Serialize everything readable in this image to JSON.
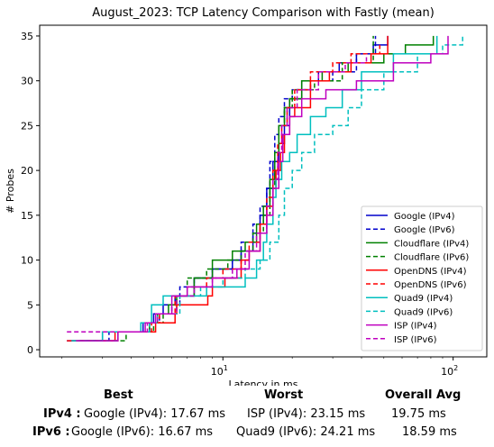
{
  "chart_data": {
    "type": "line",
    "title": "August_2023: TCP Latency Comparison with Fastly (mean)",
    "xlabel": "Latency in ms",
    "ylabel": "# Probes",
    "xscale": "log",
    "xlim": [
      1.6,
      140
    ],
    "ylim": [
      -0.8,
      36.2
    ],
    "xticks": [
      {
        "value": 10,
        "label": "10^1"
      },
      {
        "value": 100,
        "label": "10^2"
      }
    ],
    "yticks": [
      0,
      5,
      10,
      15,
      20,
      25,
      30,
      35
    ],
    "legend": "lower-right",
    "grid": false,
    "series": [
      {
        "name": "Google (IPv4)",
        "color": "#0000cc",
        "dash": false,
        "x": [
          2.1,
          3,
          4.5,
          5,
          5.5,
          6.2,
          7.5,
          9,
          11,
          12,
          13.5,
          14.5,
          15.5,
          16.5,
          17.5,
          18.5,
          19.5,
          22,
          26,
          32,
          38,
          45,
          52
        ],
        "y": [
          1,
          2,
          3,
          4,
          5,
          6,
          8,
          9,
          10,
          11,
          13,
          15,
          18,
          21,
          23,
          25,
          28,
          30,
          31,
          32,
          33,
          34,
          35
        ]
      },
      {
        "name": "Google (IPv6)",
        "color": "#0000cc",
        "dash": true,
        "x": [
          2.2,
          3.2,
          4.8,
          5.3,
          6,
          6.5,
          7.5,
          9,
          11,
          12,
          13.5,
          14.5,
          15.5,
          16,
          16.8,
          17.5,
          18.5,
          20,
          24,
          30,
          38,
          46
        ],
        "y": [
          1,
          2,
          3,
          4,
          5,
          7,
          8,
          9,
          10,
          12,
          14,
          16,
          18,
          21,
          24,
          26,
          28,
          29,
          30,
          31,
          33,
          35
        ]
      },
      {
        "name": "Cloudflare (IPv4)",
        "color": "#008000",
        "dash": false,
        "x": [
          2.4,
          3.5,
          4.8,
          5.2,
          5.8,
          6.3,
          7.5,
          9,
          11,
          12.5,
          14,
          15,
          16,
          16.8,
          17.5,
          18.5,
          19.5,
          22,
          27,
          35,
          50,
          62,
          82
        ],
        "y": [
          1,
          2,
          3,
          4,
          5,
          6,
          8,
          10,
          11,
          12,
          14,
          16,
          19,
          22,
          25,
          27,
          28,
          30,
          31,
          32,
          33,
          34,
          35
        ]
      },
      {
        "name": "Cloudflare (IPv6)",
        "color": "#008000",
        "dash": true,
        "x": [
          2.5,
          3.8,
          5,
          5.5,
          6.3,
          7,
          8.5,
          10.5,
          12,
          13.5,
          15,
          16,
          16.8,
          17.5,
          18.5,
          20,
          25,
          33,
          45
        ],
        "y": [
          1,
          2,
          3,
          4,
          6,
          8,
          9,
          10,
          11,
          13,
          15,
          18,
          22,
          25,
          27,
          29,
          30,
          32,
          35
        ]
      },
      {
        "name": "OpenDNS (IPv4)",
        "color": "#ff0000",
        "dash": false,
        "x": [
          2.1,
          3.4,
          4.9,
          5.1,
          6.2,
          6.3,
          8.6,
          9,
          10.2,
          12,
          13,
          14.5,
          15.5,
          16.5,
          17,
          17.8,
          18.5,
          19.5,
          20.5,
          24,
          29,
          36,
          44,
          52
        ],
        "y": [
          1,
          2,
          2,
          3,
          4,
          5,
          6,
          7,
          8,
          10,
          11,
          14,
          16,
          18,
          20,
          22,
          24,
          26,
          27,
          30,
          31,
          32,
          33,
          35
        ]
      },
      {
        "name": "OpenDNS (IPv6)",
        "color": "#ff0000",
        "dash": true,
        "x": [
          2.4,
          3.5,
          4.9,
          5.3,
          6.2,
          7,
          8.5,
          10,
          12,
          13,
          14.5,
          15.5,
          16.5,
          17.3,
          18,
          19,
          20.5,
          24,
          30,
          36,
          48
        ],
        "y": [
          1,
          2,
          3,
          4,
          6,
          7,
          8,
          9,
          10,
          12,
          14,
          17,
          20,
          23,
          25,
          27,
          29,
          31,
          32,
          33,
          34
        ]
      },
      {
        "name": "Quad9 (IPv4)",
        "color": "#00bfbf",
        "dash": false,
        "x": [
          2.2,
          3,
          4.4,
          4.9,
          5.5,
          6.5,
          8.5,
          11.5,
          12.5,
          14,
          15,
          15.5,
          16.5,
          17,
          18,
          19.5,
          21,
          24,
          28,
          33,
          40,
          55,
          85
        ],
        "y": [
          1,
          2,
          3,
          5,
          6,
          6,
          7,
          7,
          8,
          10,
          12,
          14,
          17,
          19,
          21,
          22,
          24,
          26,
          27,
          29,
          31,
          33,
          35
        ]
      },
      {
        "name": "Quad9 (IPv6)",
        "color": "#00bfbf",
        "dash": true,
        "x": [
          2.5,
          3.5,
          4.8,
          5.2,
          6.5,
          8,
          10,
          12.5,
          14.5,
          16,
          17.5,
          18.5,
          20,
          22,
          25,
          30,
          35,
          40,
          50,
          70,
          90,
          110
        ],
        "y": [
          1,
          2,
          3,
          4,
          6,
          7,
          8,
          9,
          10,
          12,
          15,
          18,
          20,
          22,
          24,
          25,
          27,
          29,
          31,
          33,
          34,
          35
        ]
      },
      {
        "name": "ISP (IPv4)",
        "color": "#bf00bf",
        "dash": false,
        "x": [
          2.3,
          3.5,
          4.6,
          5.1,
          6,
          7,
          9,
          11.5,
          13,
          14.5,
          15.5,
          16.5,
          17.5,
          18.2,
          19.5,
          22,
          28,
          38,
          55,
          80,
          95
        ],
        "y": [
          1,
          2,
          3,
          4,
          6,
          7,
          8,
          9,
          11,
          13,
          15,
          18,
          21,
          24,
          26,
          28,
          29,
          30,
          32,
          33,
          35
        ]
      },
      {
        "name": "ISP (IPv6)",
        "color": "#bf00bf",
        "dash": true,
        "x": [
          2.1,
          3.2,
          4.7,
          5.2,
          6.3,
          7.5,
          9,
          11,
          12.5,
          14,
          15.5,
          16.5,
          17.3,
          18,
          19,
          21,
          26,
          34,
          42
        ],
        "y": [
          2,
          2,
          3,
          4,
          6,
          7,
          8,
          9,
          11,
          13,
          16,
          19,
          22,
          25,
          27,
          29,
          31,
          32,
          33
        ]
      }
    ]
  },
  "summary": {
    "headers": {
      "best": "Best",
      "worst": "Worst",
      "avg": "Overall Avg"
    },
    "rows": [
      {
        "label": "IPv4 :",
        "best": "Google (IPv4): 17.67 ms",
        "worst": "ISP (IPv4): 23.15 ms",
        "avg": "19.75 ms"
      },
      {
        "label": "IPv6 :",
        "best": "Google (IPv6): 16.67 ms",
        "worst": "Quad9 (IPv6): 24.21 ms",
        "avg": "18.59 ms"
      }
    ]
  }
}
